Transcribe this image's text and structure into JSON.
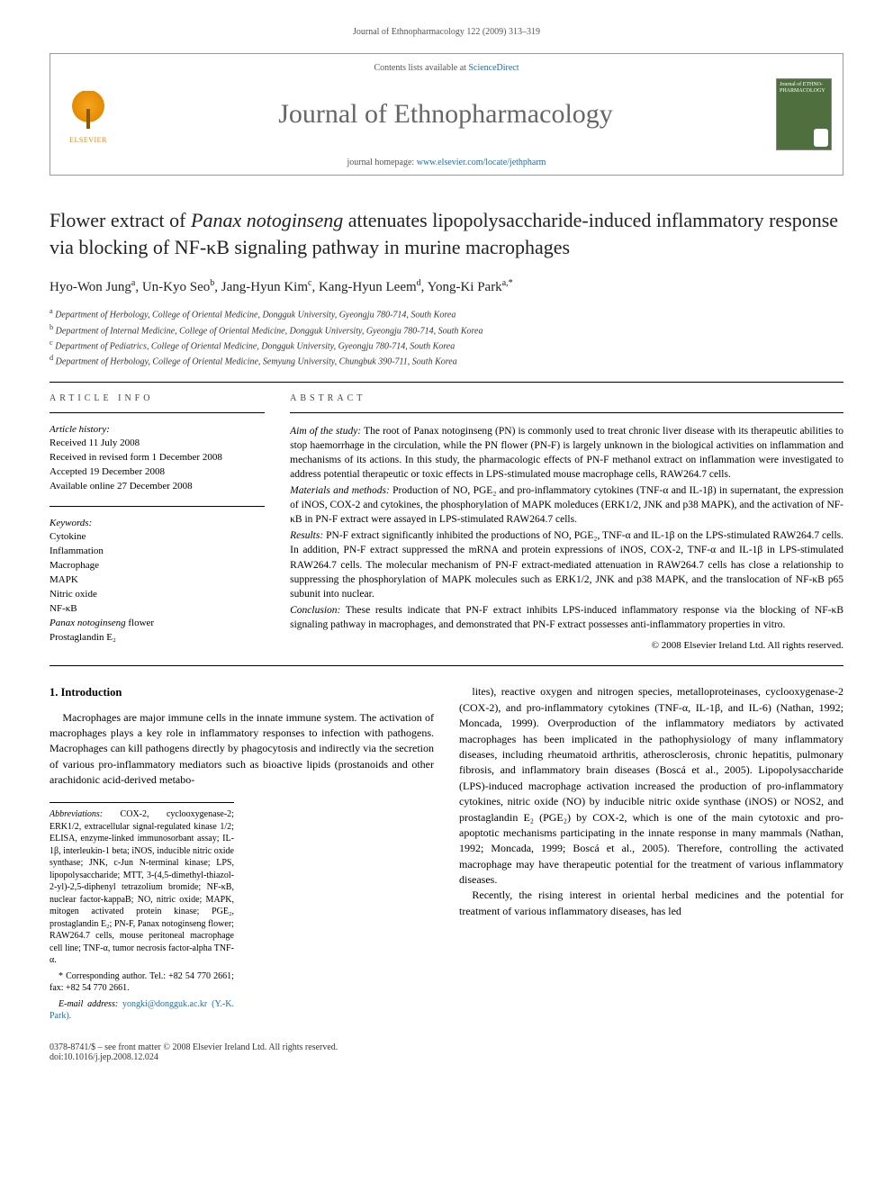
{
  "running_header": "Journal of Ethnopharmacology 122 (2009) 313–319",
  "masthead": {
    "contents_line_prefix": "Contents lists available at ",
    "contents_link": "ScienceDirect",
    "journal_title": "Journal of Ethnopharmacology",
    "homepage_prefix": "journal homepage: ",
    "homepage_url": "www.elsevier.com/locate/jethpharm",
    "publisher": "ELSEVIER",
    "cover_text": "Journal of ETHNO-PHARMACOLOGY"
  },
  "article": {
    "title_pre": "Flower extract of ",
    "title_ital": "Panax notoginseng",
    "title_post": " attenuates lipopolysaccharide-induced inflammatory response via blocking of NF-κB signaling pathway in murine macrophages",
    "authors_html": "Hyo-Won Jung<sup>a</sup>, Un-Kyo Seo<sup>b</sup>, Jang-Hyun Kim<sup>c</sup>, Kang-Hyun Leem<sup>d</sup>, Yong-Ki Park<sup>a,*</sup>",
    "affiliations": [
      "a Department of Herbology, College of Oriental Medicine, Dongguk University, Gyeongju 780-714, South Korea",
      "b Department of Internal Medicine, College of Oriental Medicine, Dongguk University, Gyeongju 780-714, South Korea",
      "c Department of Pediatrics, College of Oriental Medicine, Dongguk University, Gyeongju 780-714, South Korea",
      "d Department of Herbology, College of Oriental Medicine, Semyung University, Chungbuk 390-711, South Korea"
    ]
  },
  "info": {
    "heading": "article info",
    "history_label": "Article history:",
    "history": [
      "Received 11 July 2008",
      "Received in revised form 1 December 2008",
      "Accepted 19 December 2008",
      "Available online 27 December 2008"
    ],
    "keywords_label": "Keywords:",
    "keywords": [
      "Cytokine",
      "Inflammation",
      "Macrophage",
      "MAPK",
      "Nitric oxide",
      "NF-κB",
      "Panax notoginseng flower",
      "Prostaglandin E₂"
    ]
  },
  "abstract": {
    "heading": "abstract",
    "aim_label": "Aim of the study:",
    "aim": " The root of Panax notoginseng (PN) is commonly used to treat chronic liver disease with its therapeutic abilities to stop haemorrhage in the circulation, while the PN flower (PN-F) is largely unknown in the biological activities on inflammation and mechanisms of its actions. In this study, the pharmacologic effects of PN-F methanol extract on inflammation were investigated to address potential therapeutic or toxic effects in LPS-stimulated mouse macrophage cells, RAW264.7 cells.",
    "mm_label": "Materials and methods:",
    "mm": " Production of NO, PGE₂ and pro-inflammatory cytokines (TNF-α and IL-1β) in supernatant, the expression of iNOS, COX-2 and cytokines, the phosphorylation of MAPK moleduces (ERK1/2, JNK and p38 MAPK), and the activation of NF-κB in PN-F extract were assayed in LPS-stimulated RAW264.7 cells.",
    "results_label": "Results:",
    "results": " PN-F extract significantly inhibited the productions of NO, PGE₂, TNF-α and IL-1β on the LPS-stimulated RAW264.7 cells. In addition, PN-F extract suppressed the mRNA and protein expressions of iNOS, COX-2, TNF-α and IL-1β in LPS-stimulated RAW264.7 cells. The molecular mechanism of PN-F extract-mediated attenuation in RAW264.7 cells has close a relationship to suppressing the phosphorylation of MAPK molecules such as ERK1/2, JNK and p38 MAPK, and the translocation of NF-κB p65 subunit into nuclear.",
    "conclusion_label": "Conclusion:",
    "conclusion": " These results indicate that PN-F extract inhibits LPS-induced inflammatory response via the blocking of NF-κB signaling pathway in macrophages, and demonstrated that PN-F extract possesses anti-inflammatory properties in vitro.",
    "copyright": "© 2008 Elsevier Ireland Ltd. All rights reserved."
  },
  "body": {
    "section1_heading": "1. Introduction",
    "col1_p1": "Macrophages are major immune cells in the innate immune system. The activation of macrophages plays a key role in inflammatory responses to infection with pathogens. Macrophages can kill pathogens directly by phagocytosis and indirectly via the secretion of various pro-inflammatory mediators such as bioactive lipids (prostanoids and other arachidonic acid-derived metabo-",
    "col2_p1": "lites), reactive oxygen and nitrogen species, metalloproteinases, cyclooxygenase-2 (COX-2), and pro-inflammatory cytokines (TNF-α, IL-1β, and IL-6) (Nathan, 1992; Moncada, 1999). Overproduction of the inflammatory mediators by activated macrophages has been implicated in the pathophysiology of many inflammatory diseases, including rheumatoid arthritis, atherosclerosis, chronic hepatitis, pulmonary fibrosis, and inflammatory brain diseases (Boscá et al., 2005). Lipopolysaccharide (LPS)-induced macrophage activation increased the production of pro-inflammatory cytokines, nitric oxide (NO) by inducible nitric oxide synthase (iNOS) or NOS2, and prostaglandin E₂ (PGE₂) by COX-2, which is one of the main cytotoxic and pro-apoptotic mechanisms participating in the innate response in many mammals (Nathan, 1992; Moncada, 1999; Boscá et al., 2005). Therefore, controlling the activated macrophage may have therapeutic potential for the treatment of various inflammatory diseases.",
    "col2_p2": "Recently, the rising interest in oriental herbal medicines and the potential for treatment of various inflammatory diseases, has led"
  },
  "footnotes": {
    "abbrev_label": "Abbreviations:",
    "abbrev": " COX-2, cyclooxygenase-2; ERK1/2, extracellular signal-regulated kinase 1/2; ELISA, enzyme-linked immunosorbant assay; IL-1β, interleukin-1 beta; iNOS, inducible nitric oxide synthase; JNK, c-Jun N-terminal kinase; LPS, lipopolysaccharide; MTT, 3-(4,5-dimethyl-thiazol-2-yl)-2,5-diphenyl tetrazolium bromide; NF-κB, nuclear factor-kappaB; NO, nitric oxide; MAPK, mitogen activated protein kinase; PGE₂, prostaglandin E₂; PN-F, Panax notoginseng flower; RAW264.7 cells, mouse peritoneal macrophage cell line; TNF-α, tumor necrosis factor-alpha TNF-α.",
    "corr": "* Corresponding author. Tel.: +82 54 770 2661; fax: +82 54 770 2661.",
    "email_label": "E-mail address:",
    "email": " yongki@dongguk.ac.kr (Y.-K. Park)."
  },
  "footer": {
    "left1": "0378-8741/$ – see front matter © 2008 Elsevier Ireland Ltd. All rights reserved.",
    "left2": "doi:10.1016/j.jep.2008.12.024"
  }
}
